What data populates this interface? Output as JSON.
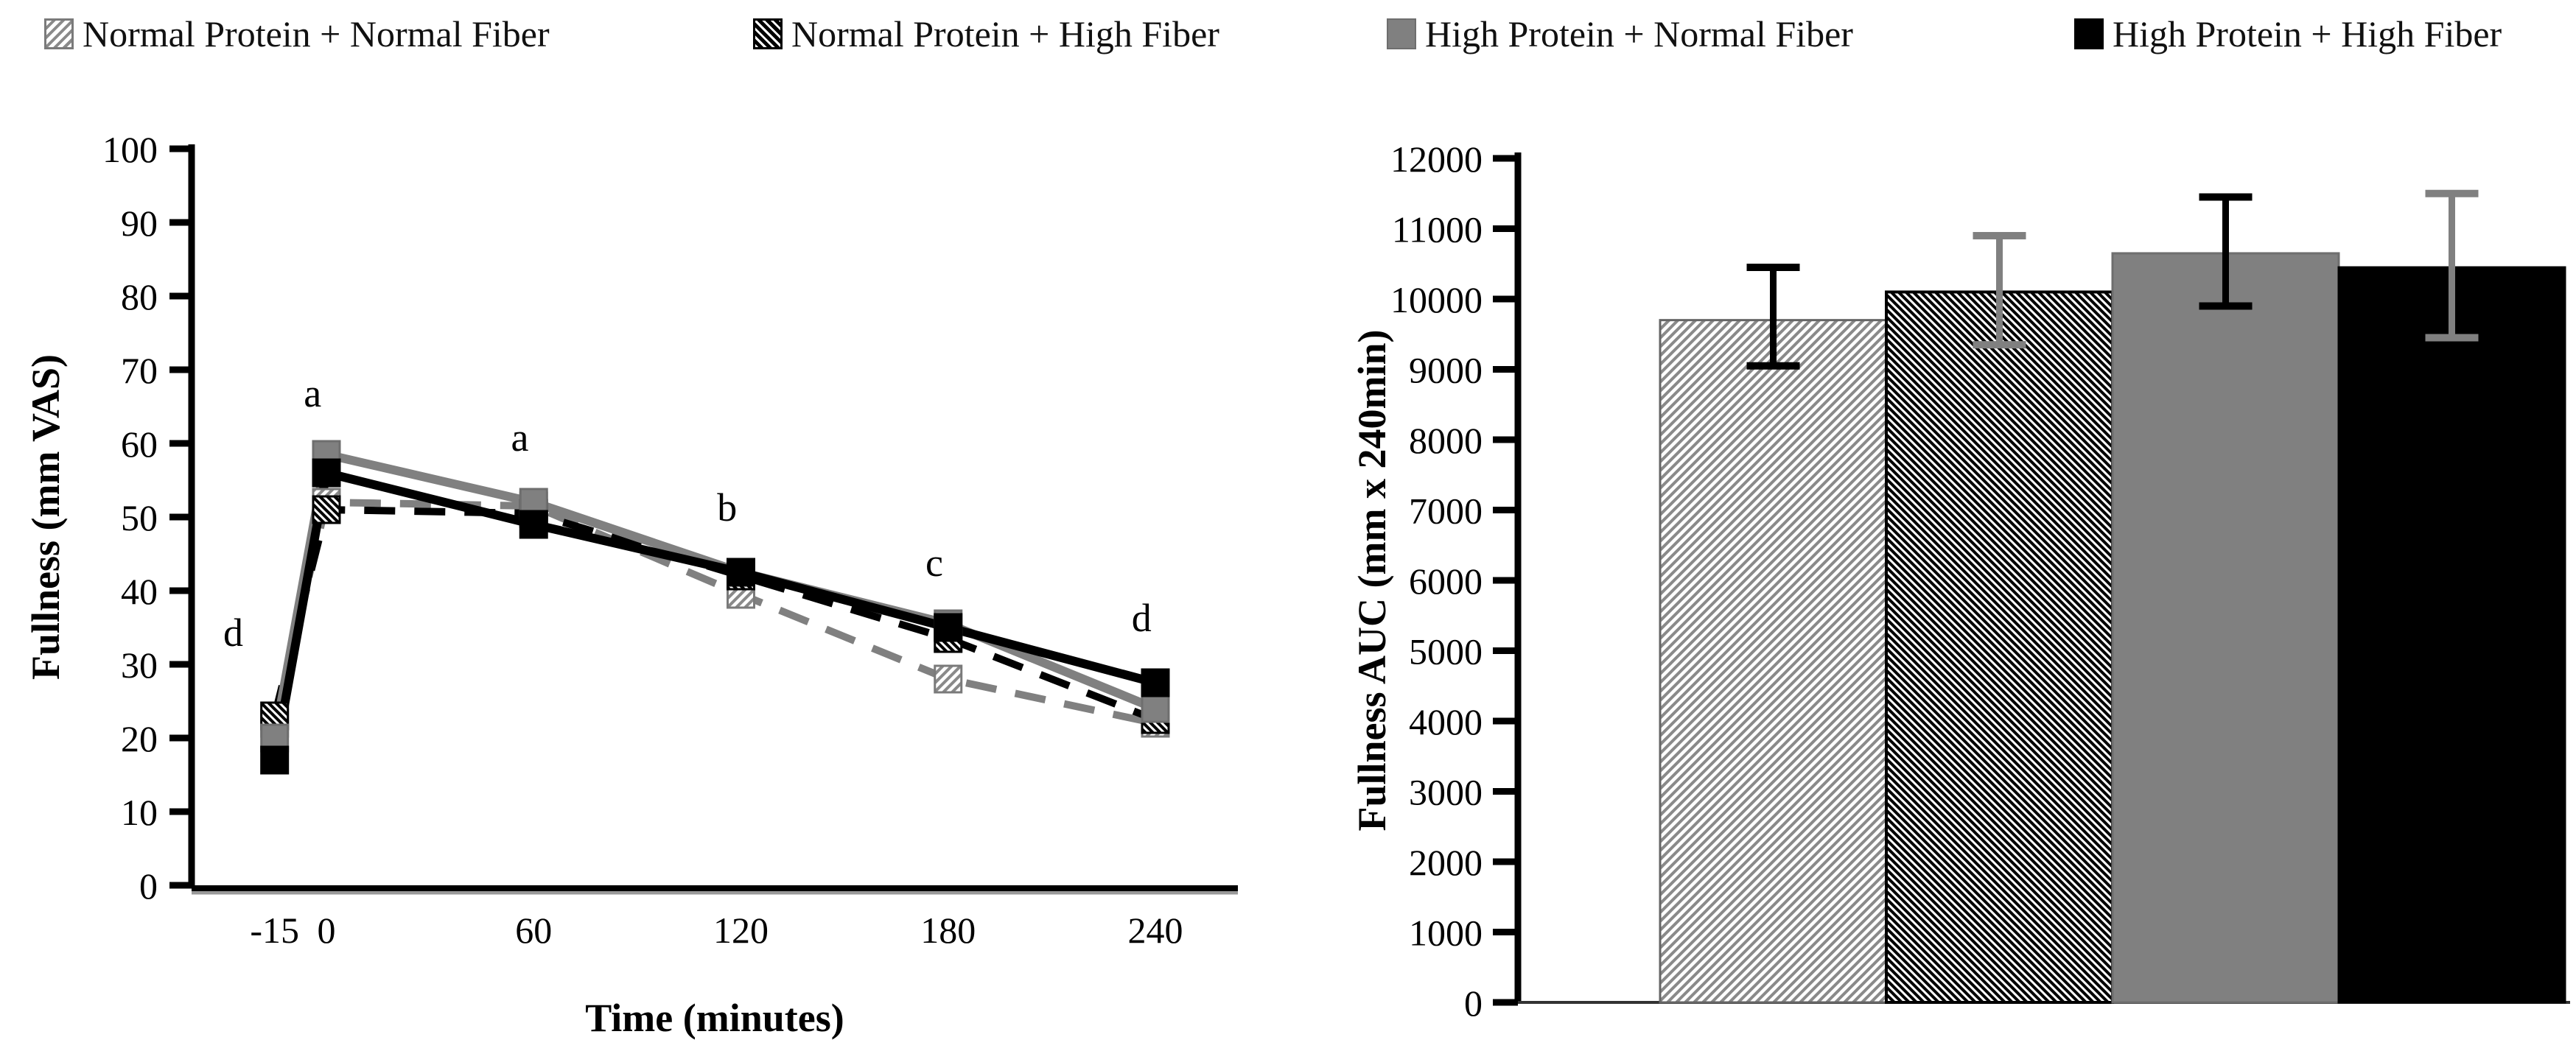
{
  "figure_type": "two-panel scientific figure",
  "colors": {
    "black": "#000000",
    "gray": "#808080",
    "light_hatch_line": "#8a8a8a",
    "axis": "#000000"
  },
  "legend": {
    "items": [
      {
        "label": "Normal Protein + Normal Fiber",
        "swatch": "light-hatch"
      },
      {
        "label": "Normal Protein + High Fiber",
        "swatch": "dark-hatch"
      },
      {
        "label": "High Protein + Normal Fiber",
        "swatch": "solid-gray"
      },
      {
        "label": "High Protein + High Fiber",
        "swatch": "solid-black"
      }
    ]
  },
  "chart_data": [
    {
      "type": "line",
      "ylabel": "Fullness (mm VAS)",
      "xlabel": "Time (minutes)",
      "ylim": [
        0,
        100
      ],
      "ytick_step": 10,
      "x": [
        -15,
        0,
        60,
        120,
        180,
        240
      ],
      "x_tick_labels": [
        "-15",
        "0",
        "60",
        "120",
        "180",
        "240"
      ],
      "grid": false,
      "series": [
        {
          "name": "Normal Protein + Normal Fiber",
          "values": [
            22,
            52,
            51.5,
            39.5,
            28,
            22
          ],
          "line": "dashed",
          "color": "#808080",
          "marker": "light-hatch"
        },
        {
          "name": "Normal Protein + High Fiber",
          "values": [
            23,
            51,
            50.5,
            42,
            33.5,
            22.5
          ],
          "line": "dashed",
          "color": "#000000",
          "marker": "dark-hatch"
        },
        {
          "name": "High Protein + Normal Fiber",
          "values": [
            20,
            58.5,
            52,
            42.5,
            35.5,
            24
          ],
          "line": "solid",
          "color": "#808080",
          "marker": "solid-gray"
        },
        {
          "name": "High Protein + High Fiber",
          "values": [
            17,
            56,
            49,
            42.5,
            35,
            27.5
          ],
          "line": "solid",
          "color": "#000000",
          "marker": "solid-black"
        }
      ],
      "annotations": [
        {
          "text": "d",
          "t": -27,
          "v": 32.5
        },
        {
          "text": "a",
          "t": -4,
          "v": 65
        },
        {
          "text": "a",
          "t": 56,
          "v": 59
        },
        {
          "text": "b",
          "t": 116,
          "v": 49.5
        },
        {
          "text": "c",
          "t": 176,
          "v": 42
        },
        {
          "text": "d",
          "t": 236,
          "v": 34.5
        }
      ]
    },
    {
      "type": "bar",
      "ylabel": "Fullness AUC (mm x 240min)",
      "ylim": [
        0,
        12000
      ],
      "ytick_step": 1000,
      "categories": [
        "Normal Protein + Normal Fiber",
        "Normal Protein + High Fiber",
        "High Protein + Normal Fiber",
        "High Protein + High Fiber"
      ],
      "values": [
        9700,
        10100,
        10650,
        10450
      ],
      "errors": [
        {
          "low": 9050,
          "high": 10450,
          "color": "#000000"
        },
        {
          "low": 9350,
          "high": 10900,
          "color": "#808080"
        },
        {
          "low": 9900,
          "high": 11450,
          "color": "#000000"
        },
        {
          "low": 9450,
          "high": 11500,
          "color": "#808080"
        }
      ],
      "bar_styles": [
        "light-hatch",
        "dark-hatch",
        "solid-gray",
        "solid-black"
      ],
      "legend_position": "top"
    }
  ]
}
